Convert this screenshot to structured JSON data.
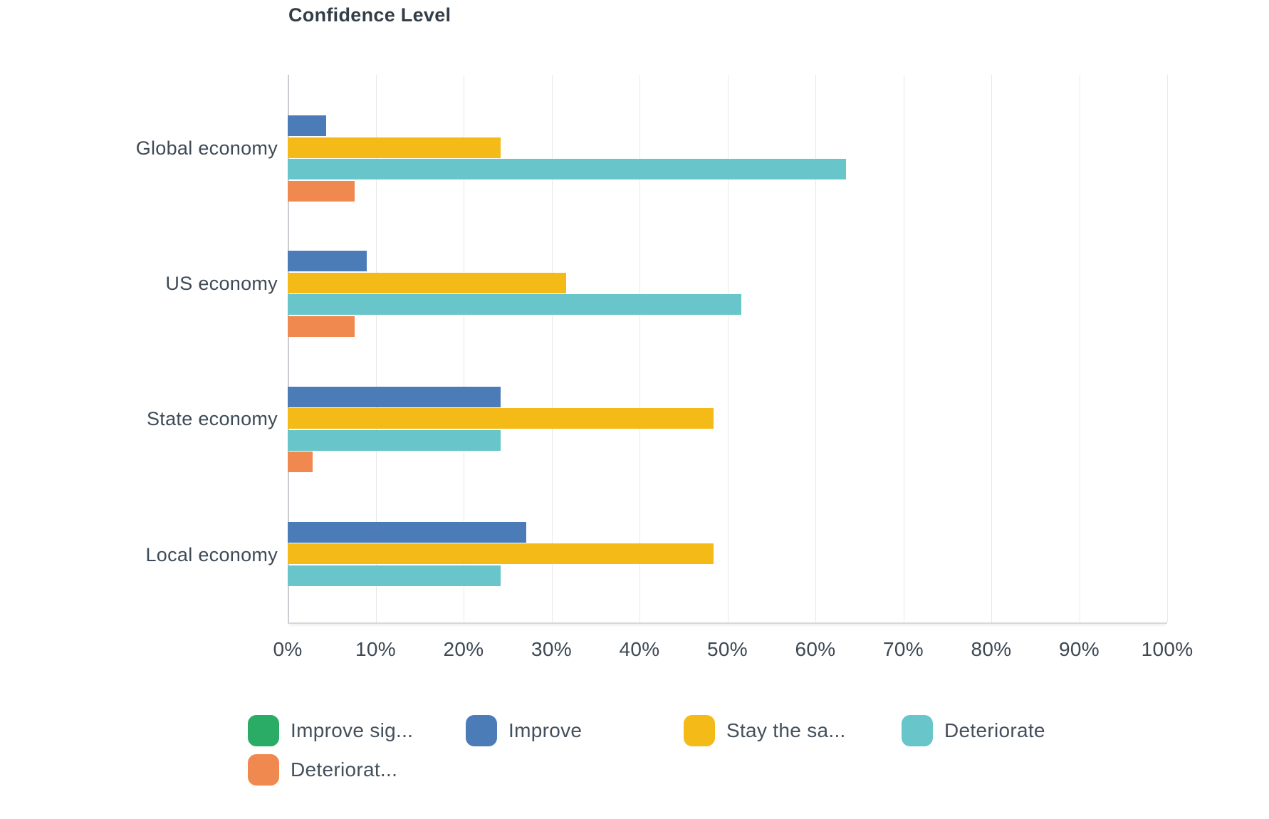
{
  "chart_data": {
    "type": "bar",
    "orientation": "horizontal",
    "title": "Confidence Level",
    "categories": [
      "Global economy",
      "US economy",
      "State economy",
      "Local economy"
    ],
    "series": [
      {
        "name": "Improve sig...",
        "color": "#2bac66",
        "values": [
          0,
          0,
          0,
          0
        ]
      },
      {
        "name": "Improve",
        "color": "#4c7cb8",
        "values": [
          4.4,
          9.0,
          24.2,
          27.1
        ]
      },
      {
        "name": "Stay the sa...",
        "color": "#f4ba18",
        "values": [
          24.2,
          31.7,
          48.4,
          48.4
        ]
      },
      {
        "name": "Deteriorate",
        "color": "#68c5c9",
        "values": [
          63.5,
          51.6,
          24.2,
          24.2
        ]
      },
      {
        "name": "Deteriorat...",
        "color": "#f0894f",
        "values": [
          7.6,
          7.6,
          2.8,
          0
        ]
      }
    ],
    "x_ticks": [
      "0%",
      "10%",
      "20%",
      "30%",
      "40%",
      "50%",
      "60%",
      "70%",
      "80%",
      "90%",
      "100%"
    ],
    "xlim": [
      0,
      100
    ],
    "grid": true,
    "legend_position": "bottom"
  }
}
